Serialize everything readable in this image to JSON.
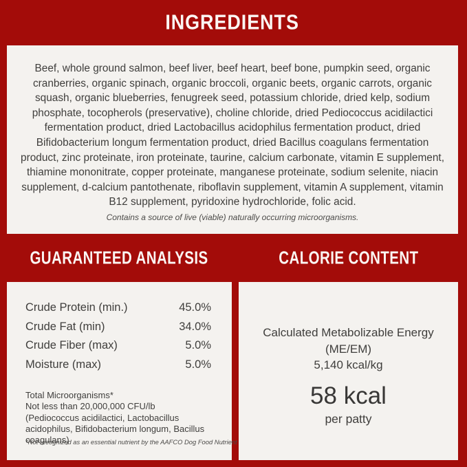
{
  "colors": {
    "background_red": "#a30c09",
    "panel_offwhite": "#f4f2ef",
    "heading_text": "#fbf6f3",
    "body_text": "#3f3e3c"
  },
  "ingredients": {
    "title": "INGREDIENTS",
    "text": "Beef, whole ground salmon, beef liver, beef heart, beef bone, pumpkin seed, organic cranberries, organic spinach, organic broccoli, organic beets, organic carrots, organic squash, organic blueberries, fenugreek seed, potassium chloride, dried kelp, sodium phosphate, tocopherols (preservative), choline chloride, dried Pediococcus acidilactici fermentation product, dried Lactobacillus acidophilus fermentation product, dried Bifidobacterium longum fermentation product, dried Bacillus coagulans fermentation product, zinc proteinate, iron proteinate, taurine, calcium carbonate, vitamin E supplement, thiamine mononitrate, copper proteinate, manganese proteinate, sodium selenite, niacin supplement, d-calcium pantothenate, riboflavin supplement, vitamin A supplement, vitamin B12 supplement, pyridoxine hydrochloride, folic acid.",
    "note": "Contains a source of live (viable) naturally occurring microorganisms."
  },
  "guaranteed_analysis": {
    "title": "GUARANTEED ANALYSIS",
    "rows": [
      {
        "label": "Crude Protein (min.)",
        "value": "45.0%"
      },
      {
        "label": "Crude Fat (min)",
        "value": "34.0%"
      },
      {
        "label": "Crude Fiber (max)",
        "value": "5.0%"
      },
      {
        "label": "Moisture (max)",
        "value": "5.0%"
      }
    ],
    "microorganisms_title": "Total Microorganisms*",
    "microorganisms_detail": "Not less than 20,000,000 CFU/lb (Pediococcus acidilactici, Lactobacillus acidophilus, Bifidobacterium longum, Bacillus coagulans)",
    "footnote": "*Not recognized as an essential nutrient by the AAFCO Dog Food Nutrient Profiles."
  },
  "calorie_content": {
    "title": "CALORIE CONTENT",
    "energy_label": "Calculated Metabolizable Energy (ME/EM)",
    "kcal_per_kg": "5,140 kcal/kg",
    "per_patty_value": "58 kcal",
    "per_patty_unit": "per patty"
  }
}
